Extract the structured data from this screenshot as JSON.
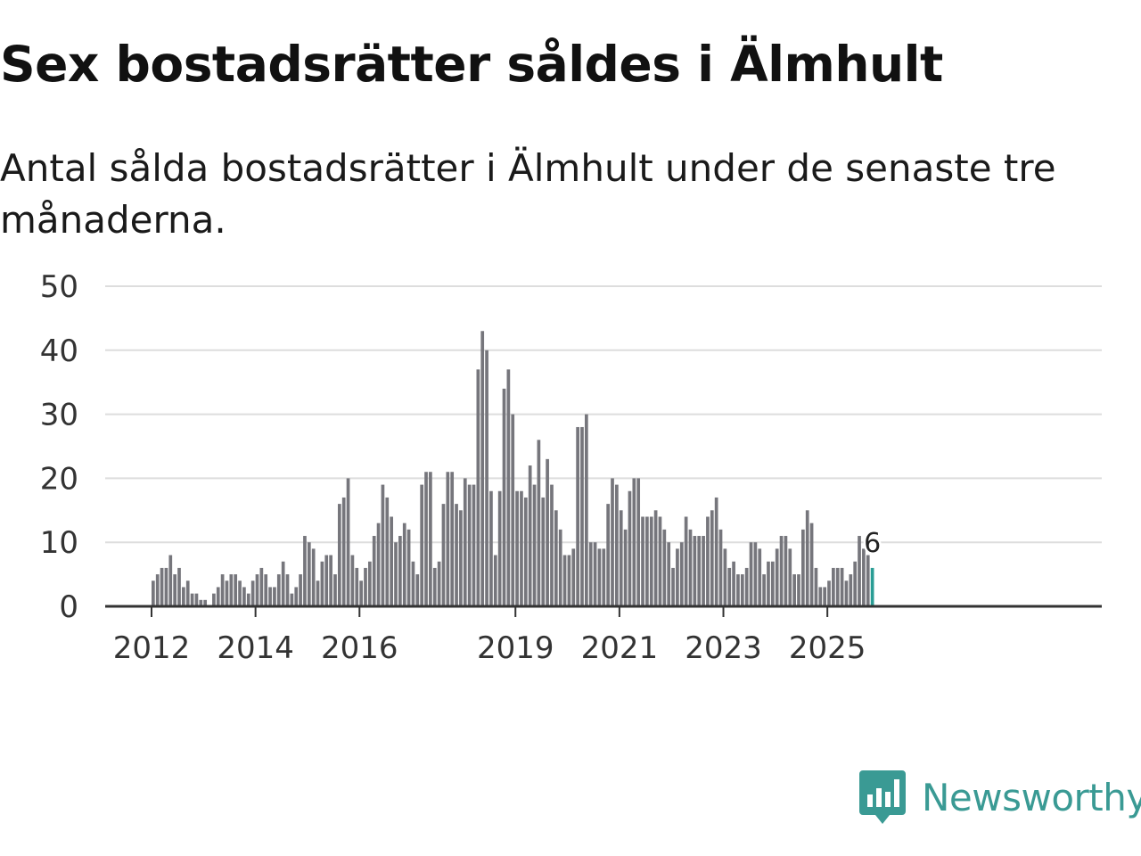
{
  "title": "Sex bostadsrätter såldes i Älmhult",
  "subtitle": "Antal sålda bostadsrätter i Älmhult under de senaste tre månaderna.",
  "brand": {
    "name": "Newsworthy",
    "color": "#3a9a94",
    "icon": "newsworthy-logo-icon"
  },
  "colors": {
    "bar": "#76767c",
    "highlight": "#2a9d95",
    "grid": "#dddddd",
    "axis": "#333333"
  },
  "chart_data": {
    "type": "bar",
    "title": "Sex bostadsrätter såldes i Älmhult",
    "xlabel": "",
    "ylabel": "",
    "ylim": [
      0,
      50
    ],
    "yticks": [
      "0",
      "10",
      "20",
      "30",
      "40",
      "50"
    ],
    "xticks": [
      "2012",
      "2014",
      "2016",
      "2019",
      "2021",
      "2023",
      "2025"
    ],
    "start": "2012-01",
    "frequency": "monthly",
    "values": [
      4,
      5,
      6,
      6,
      8,
      5,
      6,
      3,
      4,
      2,
      2,
      1,
      1,
      0,
      2,
      3,
      5,
      4,
      5,
      5,
      4,
      3,
      2,
      4,
      5,
      6,
      5,
      3,
      3,
      5,
      7,
      5,
      2,
      3,
      5,
      11,
      10,
      9,
      4,
      7,
      8,
      8,
      5,
      16,
      17,
      20,
      8,
      6,
      4,
      6,
      7,
      11,
      13,
      19,
      17,
      14,
      10,
      11,
      13,
      12,
      7,
      5,
      19,
      21,
      21,
      6,
      7,
      16,
      21,
      21,
      16,
      15,
      20,
      19,
      19,
      37,
      43,
      40,
      18,
      8,
      18,
      34,
      37,
      30,
      18,
      18,
      17,
      22,
      19,
      26,
      17,
      23,
      19,
      15,
      12,
      8,
      8,
      9,
      28,
      28,
      30,
      10,
      10,
      9,
      9,
      16,
      20,
      19,
      15,
      12,
      18,
      20,
      20,
      14,
      14,
      14,
      15,
      14,
      12,
      10,
      6,
      9,
      10,
      14,
      12,
      11,
      11,
      11,
      14,
      15,
      17,
      12,
      9,
      6,
      7,
      5,
      5,
      6,
      10,
      10,
      9,
      5,
      7,
      7,
      9,
      11,
      11,
      9,
      5,
      5,
      12,
      15,
      13,
      6,
      3,
      3,
      4,
      6,
      6,
      6,
      4,
      5,
      7,
      11,
      9,
      8,
      6
    ],
    "highlight_last": 1,
    "annotation": "6"
  }
}
